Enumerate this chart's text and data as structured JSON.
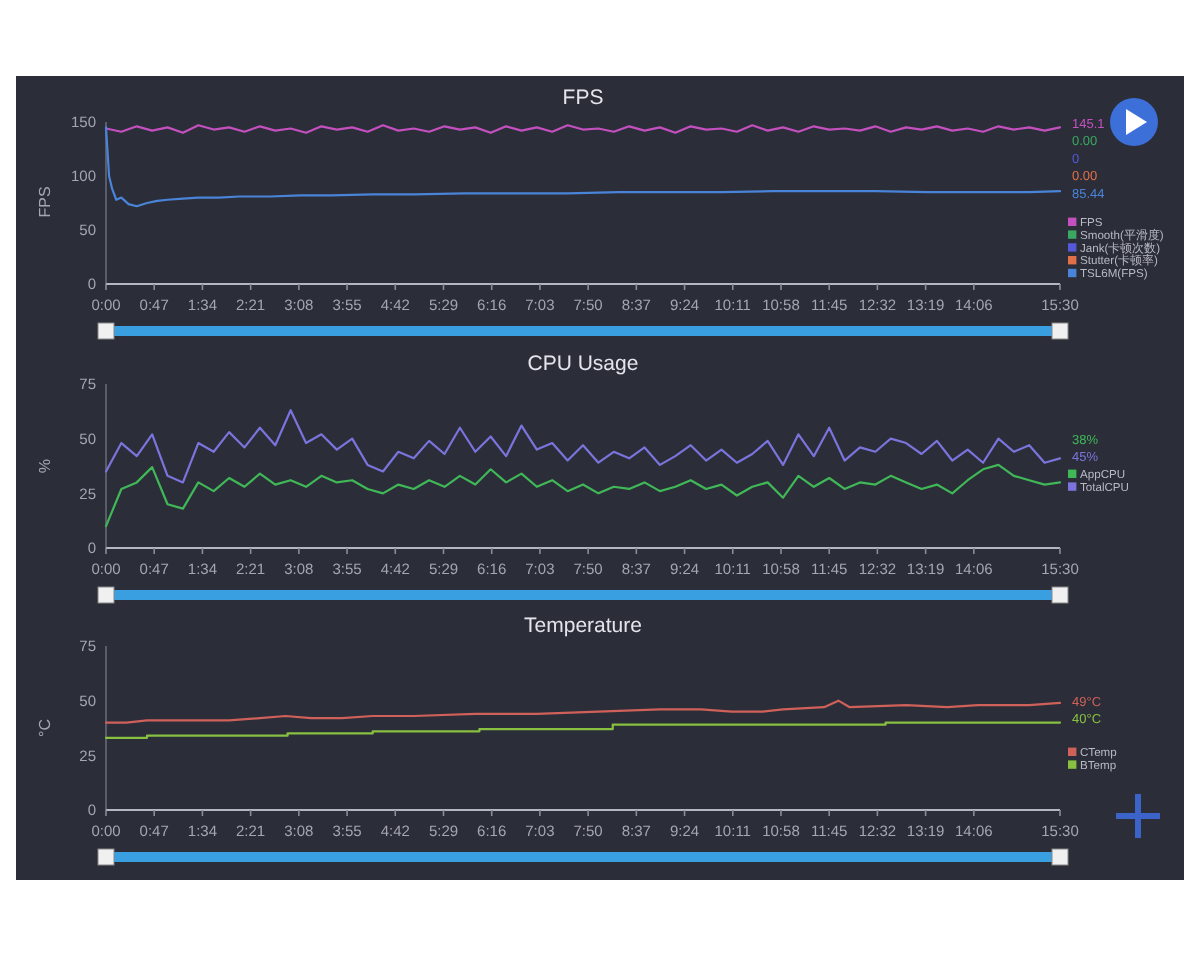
{
  "chart_data": [
    {
      "type": "line",
      "title": "FPS",
      "ylabel": "FPS",
      "xlim": [
        0,
        930
      ],
      "ylim": [
        0,
        150
      ],
      "yticks": [
        0,
        50,
        100,
        150
      ],
      "xticks": [
        {
          "value": 0,
          "label": "0:00"
        },
        {
          "value": 47,
          "label": "0:47"
        },
        {
          "value": 94,
          "label": "1:34"
        },
        {
          "value": 141,
          "label": "2:21"
        },
        {
          "value": 188,
          "label": "3:08"
        },
        {
          "value": 235,
          "label": "3:55"
        },
        {
          "value": 282,
          "label": "4:42"
        },
        {
          "value": 329,
          "label": "5:29"
        },
        {
          "value": 376,
          "label": "6:16"
        },
        {
          "value": 423,
          "label": "7:03"
        },
        {
          "value": 470,
          "label": "7:50"
        },
        {
          "value": 517,
          "label": "8:37"
        },
        {
          "value": 564,
          "label": "9:24"
        },
        {
          "value": 611,
          "label": "10:11"
        },
        {
          "value": 658,
          "label": "10:58"
        },
        {
          "value": 705,
          "label": "11:45"
        },
        {
          "value": 752,
          "label": "12:32"
        },
        {
          "value": 799,
          "label": "13:19"
        },
        {
          "value": 846,
          "label": "14:06"
        },
        {
          "value": 930,
          "label": "15:30"
        }
      ],
      "series": [
        {
          "name": "FPS",
          "color": "#c450c0",
          "x": [
            0,
            15,
            30,
            45,
            60,
            75,
            90,
            105,
            120,
            135,
            150,
            165,
            180,
            195,
            210,
            225,
            240,
            255,
            270,
            285,
            300,
            315,
            330,
            345,
            360,
            375,
            390,
            405,
            420,
            435,
            450,
            465,
            480,
            495,
            510,
            525,
            540,
            555,
            570,
            585,
            600,
            615,
            630,
            645,
            660,
            675,
            690,
            705,
            720,
            735,
            750,
            765,
            780,
            795,
            810,
            825,
            840,
            855,
            870,
            885,
            900,
            915,
            930
          ],
          "values": [
            144,
            141,
            146,
            142,
            145,
            140,
            147,
            143,
            145,
            141,
            146,
            142,
            144,
            140,
            146,
            143,
            145,
            141,
            147,
            142,
            144,
            141,
            146,
            143,
            145,
            140,
            146,
            142,
            145,
            141,
            147,
            143,
            144,
            141,
            146,
            142,
            145,
            140,
            146,
            143,
            144,
            141,
            147,
            142,
            145,
            141,
            146,
            143,
            144,
            142,
            146,
            141,
            145,
            143,
            146,
            142,
            144,
            141,
            146,
            143,
            145,
            142,
            145
          ]
        },
        {
          "name": "Smooth(平滑度)",
          "color": "#3aa860"
        },
        {
          "name": "Jank(卡顿次数)",
          "color": "#5558d8"
        },
        {
          "name": "Stutter(卡顿率)",
          "color": "#e0704a"
        },
        {
          "name": "TSL6M(FPS)",
          "color": "#4a84d8",
          "x": [
            0,
            3,
            6,
            10,
            15,
            22,
            30,
            40,
            50,
            60,
            75,
            90,
            110,
            130,
            160,
            190,
            220,
            260,
            300,
            350,
            400,
            450,
            500,
            550,
            600,
            650,
            700,
            750,
            800,
            850,
            900,
            930
          ],
          "values": [
            145,
            100,
            88,
            78,
            80,
            74,
            72,
            75,
            77,
            78,
            79,
            80,
            80,
            81,
            81,
            82,
            82,
            83,
            83,
            84,
            84,
            84,
            85,
            85,
            85,
            86,
            86,
            86,
            85,
            85,
            85,
            86
          ]
        }
      ],
      "legend": "right",
      "annotations": [
        "145.1",
        "0.00",
        "0",
        "0.00",
        "85.44"
      ]
    },
    {
      "type": "line",
      "title": "CPU Usage",
      "ylabel": "%",
      "xlim": [
        0,
        930
      ],
      "ylim": [
        0,
        75
      ],
      "yticks": [
        0,
        25,
        50,
        75
      ],
      "xticks": [
        {
          "value": 0,
          "label": "0:00"
        },
        {
          "value": 47,
          "label": "0:47"
        },
        {
          "value": 94,
          "label": "1:34"
        },
        {
          "value": 141,
          "label": "2:21"
        },
        {
          "value": 188,
          "label": "3:08"
        },
        {
          "value": 235,
          "label": "3:55"
        },
        {
          "value": 282,
          "label": "4:42"
        },
        {
          "value": 329,
          "label": "5:29"
        },
        {
          "value": 376,
          "label": "6:16"
        },
        {
          "value": 423,
          "label": "7:03"
        },
        {
          "value": 470,
          "label": "7:50"
        },
        {
          "value": 517,
          "label": "8:37"
        },
        {
          "value": 564,
          "label": "9:24"
        },
        {
          "value": 611,
          "label": "10:11"
        },
        {
          "value": 658,
          "label": "10:58"
        },
        {
          "value": 705,
          "label": "11:45"
        },
        {
          "value": 752,
          "label": "12:32"
        },
        {
          "value": 799,
          "label": "13:19"
        },
        {
          "value": 846,
          "label": "14:06"
        },
        {
          "value": 930,
          "label": "15:30"
        }
      ],
      "x": [
        0,
        15,
        30,
        45,
        60,
        75,
        90,
        105,
        120,
        135,
        150,
        165,
        180,
        195,
        210,
        225,
        240,
        255,
        270,
        285,
        300,
        315,
        330,
        345,
        360,
        375,
        390,
        405,
        420,
        435,
        450,
        465,
        480,
        495,
        510,
        525,
        540,
        555,
        570,
        585,
        600,
        615,
        630,
        645,
        660,
        675,
        690,
        705,
        720,
        735,
        750,
        765,
        780,
        795,
        810,
        825,
        840,
        855,
        870,
        885,
        900,
        915,
        930
      ],
      "series": [
        {
          "name": "AppCPU",
          "color": "#40b858",
          "values": [
            10,
            27,
            30,
            37,
            20,
            18,
            30,
            26,
            32,
            28,
            34,
            29,
            31,
            28,
            33,
            30,
            31,
            27,
            25,
            29,
            27,
            31,
            28,
            33,
            29,
            36,
            30,
            34,
            28,
            31,
            26,
            29,
            25,
            28,
            27,
            30,
            26,
            28,
            31,
            27,
            29,
            24,
            28,
            30,
            23,
            33,
            28,
            32,
            27,
            30,
            29,
            33,
            30,
            27,
            29,
            25,
            31,
            36,
            38,
            33,
            31,
            29,
            30
          ]
        },
        {
          "name": "TotalCPU",
          "color": "#7a74dc",
          "values": [
            35,
            48,
            42,
            52,
            33,
            30,
            48,
            44,
            53,
            46,
            55,
            47,
            63,
            48,
            52,
            45,
            50,
            38,
            35,
            44,
            41,
            49,
            43,
            55,
            44,
            51,
            42,
            56,
            45,
            48,
            40,
            47,
            39,
            44,
            41,
            46,
            38,
            42,
            47,
            40,
            45,
            39,
            43,
            49,
            38,
            52,
            42,
            55,
            40,
            46,
            44,
            50,
            48,
            43,
            49,
            40,
            45,
            39,
            50,
            44,
            47,
            39,
            41
          ]
        }
      ],
      "legend": "right",
      "annotations": [
        "38%",
        "45%"
      ]
    },
    {
      "type": "line",
      "title": "Temperature",
      "ylabel": "°C",
      "xlim": [
        0,
        930
      ],
      "ylim": [
        0,
        75
      ],
      "yticks": [
        0,
        25,
        50,
        75
      ],
      "xticks": [
        {
          "value": 0,
          "label": "0:00"
        },
        {
          "value": 47,
          "label": "0:47"
        },
        {
          "value": 94,
          "label": "1:34"
        },
        {
          "value": 141,
          "label": "2:21"
        },
        {
          "value": 188,
          "label": "3:08"
        },
        {
          "value": 235,
          "label": "3:55"
        },
        {
          "value": 282,
          "label": "4:42"
        },
        {
          "value": 329,
          "label": "5:29"
        },
        {
          "value": 376,
          "label": "6:16"
        },
        {
          "value": 423,
          "label": "7:03"
        },
        {
          "value": 470,
          "label": "7:50"
        },
        {
          "value": 517,
          "label": "8:37"
        },
        {
          "value": 564,
          "label": "9:24"
        },
        {
          "value": 611,
          "label": "10:11"
        },
        {
          "value": 658,
          "label": "10:58"
        },
        {
          "value": 705,
          "label": "11:45"
        },
        {
          "value": 752,
          "label": "12:32"
        },
        {
          "value": 799,
          "label": "13:19"
        },
        {
          "value": 846,
          "label": "14:06"
        },
        {
          "value": 930,
          "label": "15:30"
        }
      ],
      "series": [
        {
          "name": "CTemp",
          "color": "#d0605a",
          "x": [
            0,
            20,
            40,
            60,
            120,
            150,
            175,
            200,
            230,
            260,
            300,
            360,
            420,
            480,
            540,
            580,
            610,
            640,
            660,
            700,
            714,
            725,
            780,
            820,
            850,
            900,
            930
          ],
          "values": [
            40,
            40,
            41,
            41,
            41,
            42,
            43,
            42,
            42,
            43,
            43,
            44,
            44,
            45,
            46,
            46,
            45,
            45,
            46,
            47,
            50,
            47,
            48,
            47,
            48,
            48,
            49
          ]
        },
        {
          "name": "BTemp",
          "color": "#88c040",
          "type": "step",
          "x": [
            0,
            40,
            177,
            260,
            364,
            494,
            760,
            930
          ],
          "values": [
            33,
            34,
            35,
            36,
            37,
            39,
            40,
            40
          ]
        }
      ],
      "legend": "right",
      "annotations": [
        "49°C",
        "40°C"
      ]
    }
  ]
}
